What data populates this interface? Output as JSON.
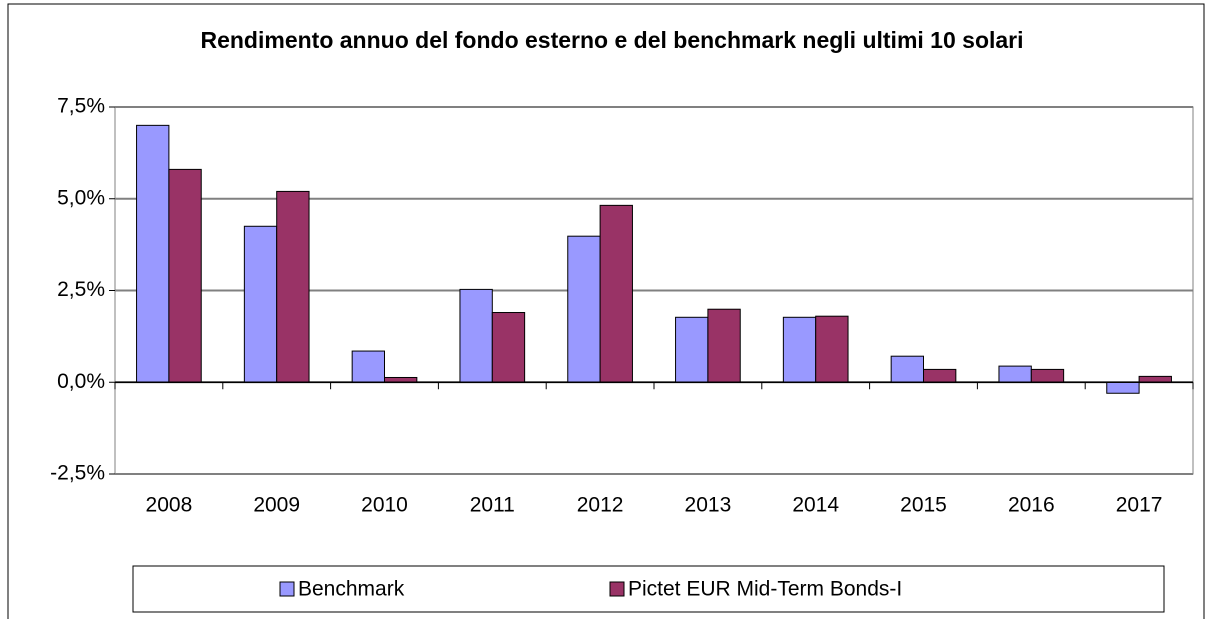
{
  "chart_data": {
    "type": "bar",
    "title": "Rendimento annuo del fondo esterno e del benchmark negli ultimi 10 solari",
    "categories": [
      "2008",
      "2009",
      "2010",
      "2011",
      "2012",
      "2013",
      "2014",
      "2015",
      "2016",
      "2017"
    ],
    "series": [
      {
        "name": "Benchmark",
        "color": "#9999ff",
        "values": [
          7.0,
          4.25,
          0.85,
          2.53,
          3.98,
          1.77,
          1.77,
          0.71,
          0.44,
          -0.3
        ]
      },
      {
        "name": "Pictet EUR Mid-Term Bonds-I",
        "color": "#993366",
        "values": [
          5.8,
          5.2,
          0.13,
          1.9,
          4.82,
          1.99,
          1.8,
          0.35,
          0.35,
          0.16
        ]
      }
    ],
    "ylim": [
      -2.5,
      7.5
    ],
    "yticks": [
      {
        "value": -2.5,
        "label": "-2,5%"
      },
      {
        "value": 0,
        "label": "0,0%"
      },
      {
        "value": 2.5,
        "label": "2,5%"
      },
      {
        "value": 5.0,
        "label": "5,0%"
      },
      {
        "value": 7.5,
        "label": "7,5%"
      }
    ],
    "grid": true
  }
}
